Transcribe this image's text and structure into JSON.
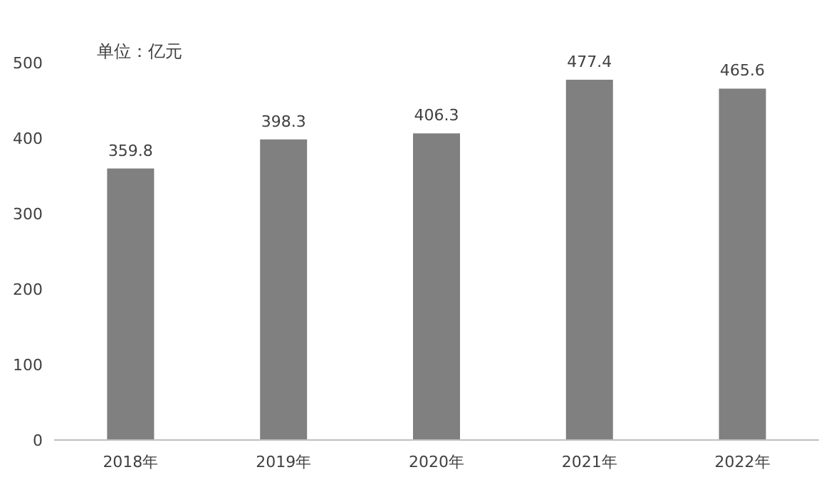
{
  "chart_data": {
    "type": "bar",
    "ylabel": "单位：亿元",
    "categories": [
      "2018年",
      "2019年",
      "2020年",
      "2021年",
      "2022年"
    ],
    "values": [
      359.8,
      398.3,
      406.3,
      477.4,
      465.6
    ],
    "color": "#808080",
    "ylim": [
      0,
      500
    ],
    "yticks": [
      0,
      100,
      200,
      300,
      400,
      500
    ],
    "data_labels": true
  }
}
